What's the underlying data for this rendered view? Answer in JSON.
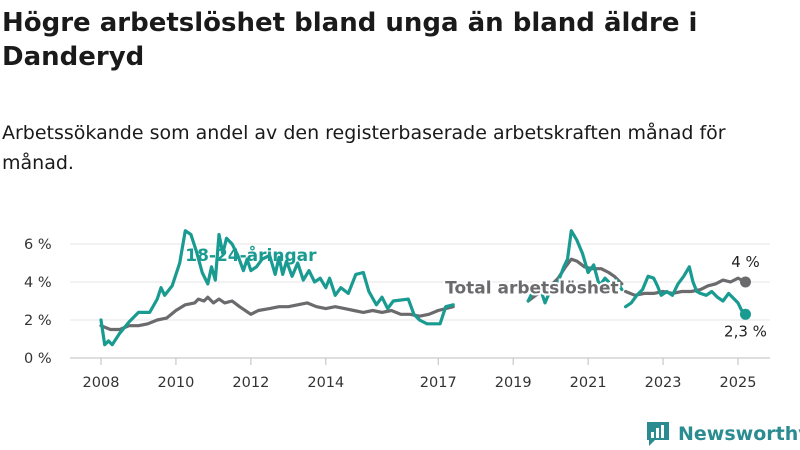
{
  "header": {
    "title": "Högre arbetslöshet bland unga än bland äldre i Danderyd",
    "subtitle": "Arbetssökande som andel av den registerbaserade arbetskraften månad för månad."
  },
  "brand": {
    "name": "Newsworthy",
    "icon": "newsworthy-logo-icon",
    "color": "#2a8c90"
  },
  "chart_data": {
    "type": "line",
    "title": "Högre arbetslöshet bland unga än bland äldre i Danderyd",
    "subtitle": "Arbetssökande som andel av den registerbaserade arbetskraften månad för månad.",
    "xlabel": "",
    "ylabel": "",
    "ylim": [
      0,
      7
    ],
    "yticks": [
      0,
      2,
      4,
      6
    ],
    "ytick_labels": [
      "0 %",
      "2 %",
      "4 %",
      "6 %"
    ],
    "xticks": [
      2008,
      2010,
      2012,
      2014,
      2017,
      2019,
      2021,
      2023,
      2025
    ],
    "xtick_labels": [
      "2008",
      "2010",
      "2012",
      "2014",
      "2017",
      "2019",
      "2021",
      "2023",
      "2025"
    ],
    "grid": true,
    "series": [
      {
        "name": "18-24-åringar",
        "color": "#1a9b91",
        "points": [
          [
            2008.0,
            2.0
          ],
          [
            2008.1,
            0.7
          ],
          [
            2008.2,
            0.9
          ],
          [
            2008.3,
            0.7
          ],
          [
            2008.5,
            1.3
          ],
          [
            2008.75,
            1.9
          ],
          [
            2009.0,
            2.4
          ],
          [
            2009.3,
            2.4
          ],
          [
            2009.5,
            3.1
          ],
          [
            2009.6,
            3.7
          ],
          [
            2009.7,
            3.3
          ],
          [
            2009.9,
            3.8
          ],
          [
            2010.1,
            5.0
          ],
          [
            2010.25,
            6.7
          ],
          [
            2010.4,
            6.5
          ],
          [
            2010.55,
            5.6
          ],
          [
            2010.7,
            4.5
          ],
          [
            2010.85,
            3.9
          ],
          [
            2010.95,
            4.8
          ],
          [
            2011.05,
            4.1
          ],
          [
            2011.15,
            6.5
          ],
          [
            2011.25,
            5.5
          ],
          [
            2011.35,
            6.3
          ],
          [
            2011.5,
            6.0
          ],
          [
            2011.65,
            5.4
          ],
          [
            2011.8,
            4.6
          ],
          [
            2011.9,
            5.2
          ],
          [
            2012.0,
            4.6
          ],
          [
            2012.15,
            4.8
          ],
          [
            2012.3,
            5.2
          ],
          [
            2012.5,
            5.4
          ],
          [
            2012.65,
            4.4
          ],
          [
            2012.75,
            5.3
          ],
          [
            2012.85,
            4.4
          ],
          [
            2012.95,
            5.1
          ],
          [
            2013.1,
            4.3
          ],
          [
            2013.25,
            5.0
          ],
          [
            2013.4,
            4.1
          ],
          [
            2013.55,
            4.6
          ],
          [
            2013.7,
            4.0
          ],
          [
            2013.85,
            4.2
          ],
          [
            2014.0,
            3.7
          ],
          [
            2014.1,
            4.2
          ],
          [
            2014.25,
            3.3
          ],
          [
            2014.4,
            3.7
          ],
          [
            2014.6,
            3.4
          ],
          [
            2014.8,
            4.4
          ],
          [
            2015.0,
            4.5
          ],
          [
            2015.15,
            3.5
          ],
          [
            2015.35,
            2.8
          ],
          [
            2015.5,
            3.2
          ],
          [
            2015.65,
            2.6
          ],
          [
            2015.8,
            3.0
          ],
          [
            2016.2,
            3.1
          ],
          [
            2016.35,
            2.3
          ],
          [
            2016.5,
            2.0
          ],
          [
            2016.7,
            1.8
          ],
          [
            2017.05,
            1.8
          ],
          [
            2017.2,
            2.7
          ],
          [
            2017.4,
            2.8
          ]
        ]
      },
      {
        "name": "Total arbetslöshet",
        "color": "#6b6b6e",
        "points": [
          [
            2008.0,
            1.7
          ],
          [
            2008.25,
            1.5
          ],
          [
            2008.5,
            1.5
          ],
          [
            2008.75,
            1.7
          ],
          [
            2009.0,
            1.7
          ],
          [
            2009.25,
            1.8
          ],
          [
            2009.5,
            2.0
          ],
          [
            2009.75,
            2.1
          ],
          [
            2010.0,
            2.5
          ],
          [
            2010.25,
            2.8
          ],
          [
            2010.5,
            2.9
          ],
          [
            2010.6,
            3.1
          ],
          [
            2010.75,
            3.0
          ],
          [
            2010.85,
            3.2
          ],
          [
            2011.0,
            2.9
          ],
          [
            2011.15,
            3.1
          ],
          [
            2011.3,
            2.9
          ],
          [
            2011.5,
            3.0
          ],
          [
            2011.7,
            2.7
          ],
          [
            2012.0,
            2.3
          ],
          [
            2012.2,
            2.5
          ],
          [
            2012.5,
            2.6
          ],
          [
            2012.75,
            2.7
          ],
          [
            2013.0,
            2.7
          ],
          [
            2013.25,
            2.8
          ],
          [
            2013.5,
            2.9
          ],
          [
            2013.75,
            2.7
          ],
          [
            2014.0,
            2.6
          ],
          [
            2014.25,
            2.7
          ],
          [
            2014.5,
            2.6
          ],
          [
            2014.75,
            2.5
          ],
          [
            2015.0,
            2.4
          ],
          [
            2015.25,
            2.5
          ],
          [
            2015.5,
            2.4
          ],
          [
            2015.75,
            2.5
          ],
          [
            2016.0,
            2.3
          ],
          [
            2016.25,
            2.3
          ],
          [
            2016.5,
            2.2
          ],
          [
            2016.75,
            2.3
          ],
          [
            2017.0,
            2.5
          ],
          [
            2017.2,
            2.6
          ],
          [
            2017.4,
            2.7
          ]
        ]
      },
      {
        "name": "18-24-åringar",
        "color": "#1a9b91",
        "points": [
          [
            2019.4,
            3.0
          ],
          [
            2019.6,
            3.8
          ],
          [
            2019.75,
            3.5
          ],
          [
            2019.85,
            2.9
          ],
          [
            2020.0,
            3.6
          ],
          [
            2020.2,
            4.0
          ],
          [
            2020.35,
            4.8
          ],
          [
            2020.45,
            5.2
          ],
          [
            2020.55,
            6.7
          ],
          [
            2020.7,
            6.2
          ],
          [
            2020.85,
            5.5
          ],
          [
            2021.0,
            4.5
          ],
          [
            2021.15,
            4.9
          ],
          [
            2021.3,
            3.8
          ],
          [
            2021.45,
            4.2
          ],
          [
            2021.6,
            3.9
          ],
          [
            2021.75,
            4.1
          ],
          [
            2021.9,
            3.6
          ]
        ]
      },
      {
        "name": "Total arbetslöshet",
        "color": "#6b6b6e",
        "points": [
          [
            2019.4,
            3.0
          ],
          [
            2019.6,
            3.3
          ],
          [
            2019.85,
            3.6
          ],
          [
            2020.0,
            3.8
          ],
          [
            2020.2,
            4.2
          ],
          [
            2020.4,
            4.8
          ],
          [
            2020.55,
            5.2
          ],
          [
            2020.7,
            5.1
          ],
          [
            2020.9,
            4.8
          ],
          [
            2021.1,
            4.7
          ],
          [
            2021.35,
            4.7
          ],
          [
            2021.55,
            4.5
          ],
          [
            2021.7,
            4.3
          ],
          [
            2021.9,
            3.9
          ]
        ]
      },
      {
        "name": "18-24-åringar",
        "color": "#1a9b91",
        "points": [
          [
            2022.0,
            2.7
          ],
          [
            2022.15,
            2.9
          ],
          [
            2022.3,
            3.3
          ],
          [
            2022.45,
            3.6
          ],
          [
            2022.6,
            4.3
          ],
          [
            2022.75,
            4.2
          ],
          [
            2022.85,
            3.8
          ],
          [
            2022.95,
            3.3
          ],
          [
            2023.1,
            3.5
          ],
          [
            2023.25,
            3.3
          ],
          [
            2023.4,
            3.9
          ],
          [
            2023.55,
            4.3
          ],
          [
            2023.7,
            4.8
          ],
          [
            2023.8,
            4.0
          ],
          [
            2023.9,
            3.5
          ],
          [
            2024.0,
            3.4
          ],
          [
            2024.15,
            3.3
          ],
          [
            2024.3,
            3.5
          ],
          [
            2024.45,
            3.2
          ],
          [
            2024.6,
            3.0
          ],
          [
            2024.75,
            3.4
          ],
          [
            2024.9,
            3.1
          ],
          [
            2025.0,
            2.9
          ],
          [
            2025.1,
            2.5
          ],
          [
            2025.2,
            2.3
          ]
        ]
      },
      {
        "name": "Total arbetslöshet",
        "color": "#6b6b6e",
        "points": [
          [
            2022.0,
            3.5
          ],
          [
            2022.25,
            3.3
          ],
          [
            2022.5,
            3.4
          ],
          [
            2022.75,
            3.4
          ],
          [
            2023.0,
            3.5
          ],
          [
            2023.25,
            3.4
          ],
          [
            2023.5,
            3.5
          ],
          [
            2023.75,
            3.5
          ],
          [
            2024.0,
            3.6
          ],
          [
            2024.2,
            3.8
          ],
          [
            2024.4,
            3.9
          ],
          [
            2024.6,
            4.1
          ],
          [
            2024.8,
            4.0
          ],
          [
            2025.0,
            4.2
          ],
          [
            2025.2,
            4.0
          ]
        ]
      }
    ],
    "annotations": [
      {
        "text": "18-24-åringar",
        "x": 2012.0,
        "y": 5.1,
        "color": "#1a9b91"
      },
      {
        "text": "Total arbetslöshet",
        "x": 2019.5,
        "y": 3.4,
        "color": "#6b6b6e"
      }
    ],
    "end_labels": [
      {
        "text": "4 %",
        "x": 2025.2,
        "y": 4.0,
        "color": "#6b6b6e"
      },
      {
        "text": "2,3 %",
        "x": 2025.2,
        "y": 2.3,
        "color": "#1a9b91"
      }
    ]
  }
}
